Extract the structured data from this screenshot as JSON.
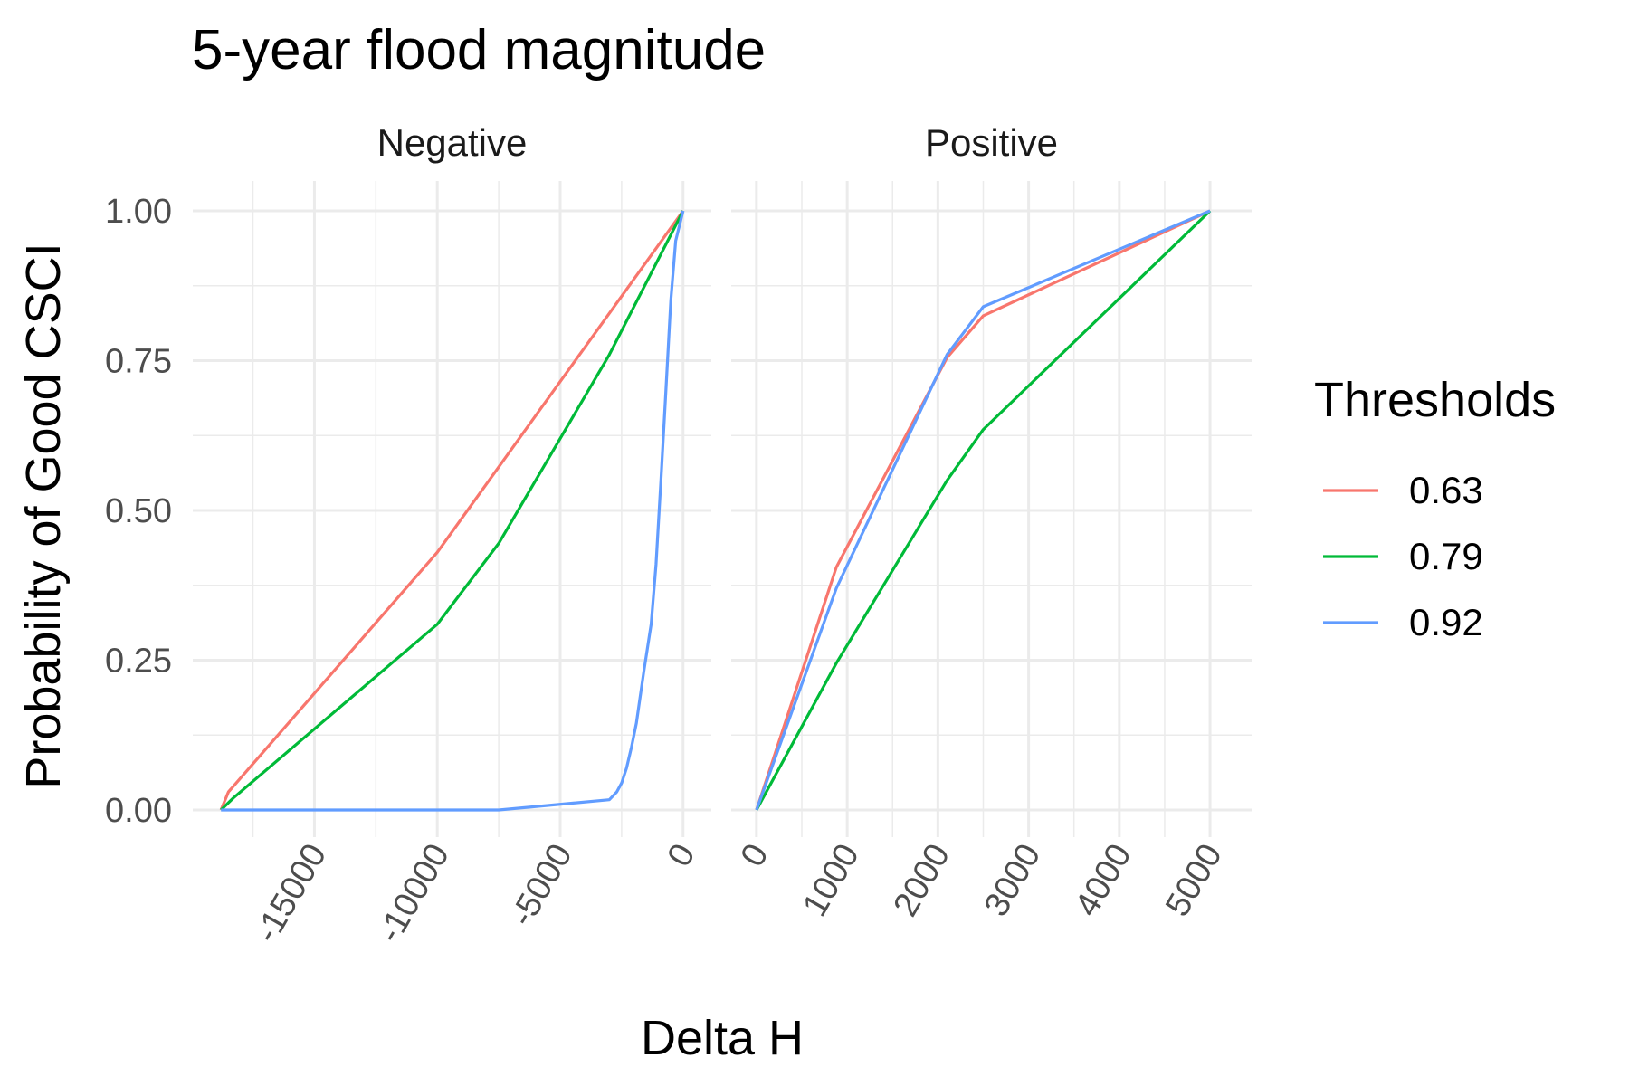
{
  "chart_data": {
    "type": "line",
    "title": "5-year flood magnitude",
    "xlabel": "Delta H",
    "ylabel": "Probability of Good CSCI",
    "ylim": [
      0,
      1
    ],
    "yticks": [
      "0.00",
      "0.25",
      "0.50",
      "0.75",
      "1.00"
    ],
    "ytick_values": [
      0,
      0.25,
      0.5,
      0.75,
      1.0
    ],
    "grid": true,
    "legend": {
      "title": "Thresholds",
      "position": "right",
      "entries": [
        {
          "label": "0.63",
          "color": "#F8766D"
        },
        {
          "label": "0.79",
          "color": "#00BA38"
        },
        {
          "label": "0.92",
          "color": "#619CFF"
        }
      ]
    },
    "panels": [
      {
        "name": "Negative",
        "xlim": [
          -19000,
          200
        ],
        "xticks": [
          "-15000",
          "-10000",
          "-5000",
          "0"
        ],
        "xtick_values": [
          -15000,
          -10000,
          -5000,
          0
        ],
        "series": [
          {
            "name": "0.63",
            "color": "#F8766D",
            "x": [
              -18800,
              -18500,
              -10000,
              0
            ],
            "y": [
              0.0,
              0.03,
              0.43,
              1.0
            ]
          },
          {
            "name": "0.79",
            "color": "#00BA38",
            "x": [
              -18800,
              -18300,
              -10000,
              -7500,
              -3000,
              0
            ],
            "y": [
              0.0,
              0.02,
              0.31,
              0.445,
              0.76,
              1.0
            ]
          },
          {
            "name": "0.92",
            "color": "#619CFF",
            "x": [
              -18800,
              -7500,
              -3000,
              -2700,
              -2500,
              -2300,
              -2100,
              -1900,
              -1600,
              -1300,
              -1100,
              -900,
              -700,
              -500,
              -300,
              0
            ],
            "y": [
              0.0,
              0.0,
              0.017,
              0.03,
              0.045,
              0.07,
              0.105,
              0.145,
              0.23,
              0.31,
              0.41,
              0.55,
              0.7,
              0.85,
              0.95,
              1.0
            ]
          }
        ]
      },
      {
        "name": "Positive",
        "xlim": [
          -20,
          5200
        ],
        "xticks": [
          "0",
          "1000",
          "2000",
          "3000",
          "4000",
          "5000"
        ],
        "xtick_values": [
          0,
          1000,
          2000,
          3000,
          4000,
          5000
        ],
        "series": [
          {
            "name": "0.63",
            "color": "#F8766D",
            "x": [
              0,
              880,
              2100,
              2500,
              5000
            ],
            "y": [
              0.0,
              0.405,
              0.755,
              0.825,
              1.0
            ]
          },
          {
            "name": "0.79",
            "color": "#00BA38",
            "x": [
              0,
              880,
              2100,
              2500,
              5000
            ],
            "y": [
              0.0,
              0.245,
              0.55,
              0.635,
              1.0
            ]
          },
          {
            "name": "0.92",
            "color": "#619CFF",
            "x": [
              0,
              880,
              2100,
              2500,
              5000
            ],
            "y": [
              0.0,
              0.37,
              0.76,
              0.84,
              1.0
            ]
          }
        ]
      }
    ]
  }
}
